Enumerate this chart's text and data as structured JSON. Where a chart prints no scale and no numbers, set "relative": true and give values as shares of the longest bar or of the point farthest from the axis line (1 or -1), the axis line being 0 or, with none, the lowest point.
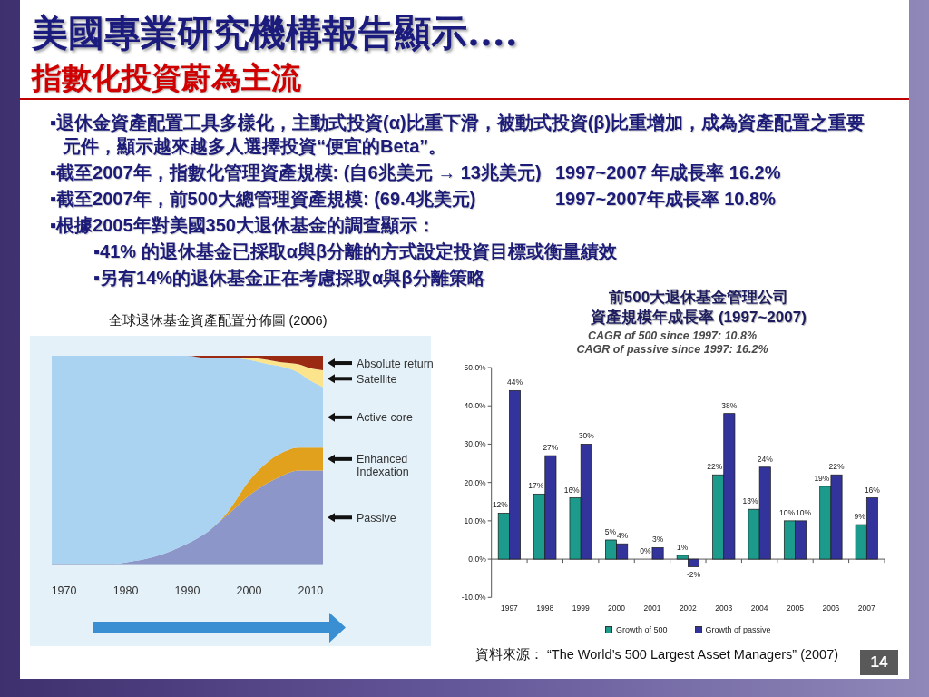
{
  "chart_data": [
    {
      "type": "other",
      "title": "美國專業研究機構報告顯示....",
      "subtitle": "指數化投資蔚為主流",
      "annotations": [
        "▪退休金資產配置工具多樣化，主動式投資(α)比重下滑，被動式投資(β)比重增加，成為資產配置之重要元件，顯示越來越多人選擇投資“便宜的Beta”。",
        "▪截至2007年，指數化管理資產規模: (自6兆美元 → 13兆美元)\t1997~2007 年成長率 16.2%",
        "▪截至2007年，前500大總管理資產規模: (69.4兆美元)\t1997~2007年成長率 10.8%",
        "▪根據2005年對美國350大退休基金的調查顯示：",
        "▪41% 的退休基金已採取α與β分離的方式設定投資目標或衡量績效",
        "▪另有14%的退休基金正在考慮採取α與β分離策略"
      ]
    },
    {
      "type": "area",
      "title": "全球退休基金資產配置分佈圖 (2006)",
      "relative": true,
      "stacked": true,
      "x": [
        1968,
        1976,
        1980,
        1985,
        1990,
        1993,
        1995,
        1997,
        2000,
        2003,
        2005,
        2008,
        2010,
        2012
      ],
      "xlim": [
        1968,
        2012
      ],
      "xticks": [
        1970,
        1980,
        1990,
        2000,
        2010
      ],
      "series": [
        {
          "name": "Passive",
          "color": "#8c96c9",
          "values": [
            0,
            0,
            0.01,
            0.04,
            0.1,
            0.15,
            0.2,
            0.25,
            0.33,
            0.39,
            0.42,
            0.45,
            0.45,
            0.45
          ]
        },
        {
          "name": "Enhanced Indexation",
          "color": "#e2a11c",
          "values": [
            0,
            0,
            0,
            0,
            0,
            0,
            0,
            0.02,
            0.07,
            0.1,
            0.11,
            0.11,
            0.11,
            0.11
          ]
        },
        {
          "name": "Active core",
          "color": "#a9d3f1",
          "values": [
            1,
            1,
            0.99,
            0.96,
            0.9,
            0.84,
            0.79,
            0.72,
            0.58,
            0.47,
            0.42,
            0.36,
            0.32,
            0.29
          ]
        },
        {
          "name": "Satellite",
          "color": "#fbe48c",
          "values": [
            0,
            0,
            0,
            0,
            0,
            0,
            0,
            0,
            0.01,
            0.02,
            0.02,
            0.04,
            0.06,
            0.08
          ]
        },
        {
          "name": "Absolute return",
          "color": "#9a2b12",
          "values": [
            0,
            0,
            0,
            0,
            0,
            0.01,
            0.01,
            0.01,
            0.01,
            0.02,
            0.03,
            0.04,
            0.06,
            0.07
          ]
        }
      ]
    },
    {
      "type": "bar",
      "title": "前500大退休基金管理公司資產規模年成長率 (1997~2007)",
      "subtitle": "CAGR of 500 since 1997: 10.8%\nCAGR of passive since 1997: 16.2%",
      "categories": [
        "1997",
        "1998",
        "1999",
        "2000",
        "2001",
        "2002",
        "2003",
        "2004",
        "2005",
        "2006",
        "2007"
      ],
      "series": [
        {
          "name": "Growth of 500",
          "color": "#1c9b8c",
          "values": [
            12,
            17,
            16,
            5,
            0,
            1,
            22,
            13,
            10,
            19,
            9
          ],
          "value_labels": [
            "12%",
            "17%",
            "16%",
            "5%",
            "0%",
            "1%",
            "22%",
            "13%",
            "10%",
            "19%",
            "9%"
          ]
        },
        {
          "name": "Growth of passive",
          "color": "#33339c",
          "values": [
            44,
            27,
            30,
            4,
            3,
            -2,
            38,
            24,
            10,
            22,
            16
          ],
          "value_labels": [
            "44%",
            "27%",
            "30%",
            "4%",
            "3%",
            "-2%",
            "38%",
            "24%",
            "10%",
            "22%",
            "16%"
          ]
        }
      ],
      "ylim": [
        -10,
        50
      ],
      "yticks": [
        {
          "value": -10,
          "label": "-10.0%"
        },
        {
          "value": 0,
          "label": "0.0%"
        },
        {
          "value": 10,
          "label": "10.0%"
        },
        {
          "value": 20,
          "label": "20.0%"
        },
        {
          "value": 30,
          "label": "30.0%"
        },
        {
          "value": 40,
          "label": "40.0%"
        },
        {
          "value": 50,
          "label": "50.0%"
        }
      ],
      "legend": "bottom",
      "annotations": [
        "資料來源： “The World’s 500 Largest Asset Managers” (2007)",
        "14"
      ]
    }
  ]
}
